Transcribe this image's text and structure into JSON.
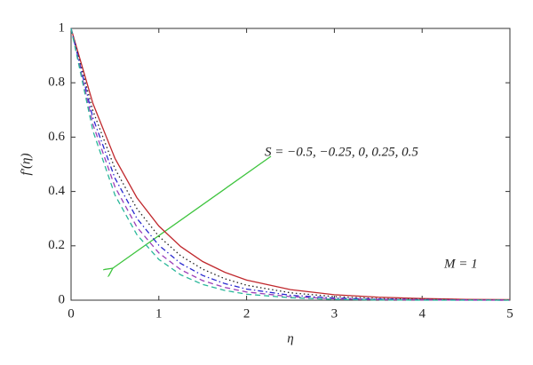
{
  "chart_data": {
    "type": "line",
    "x_label": "η",
    "y_label": "f′(η)",
    "annotations": [
      "S = −0.5, −0.25, 0, 0.25, 0.5",
      "M = 1"
    ],
    "x": [
      0,
      0.25,
      0.5,
      0.75,
      1,
      1.25,
      1.5,
      1.75,
      2,
      2.5,
      3,
      3.5,
      4,
      4.5,
      5
    ],
    "series": [
      {
        "color": "#c0282d",
        "dash": "solid",
        "values": [
          1,
          0.723,
          0.522,
          0.377,
          0.273,
          0.197,
          0.142,
          0.103,
          0.074,
          0.039,
          0.02,
          0.011,
          0.006,
          0.003,
          0.002
        ]
      },
      {
        "color": "#222222",
        "dash": "dotted",
        "values": [
          1,
          0.696,
          0.484,
          0.337,
          0.235,
          0.163,
          0.114,
          0.079,
          0.055,
          0.027,
          0.013,
          0.006,
          0.003,
          0.001,
          0.001
        ]
      },
      {
        "color": "#2a2ad0",
        "dash": "dashdot",
        "values": [
          1,
          0.67,
          0.449,
          0.301,
          0.202,
          0.135,
          0.091,
          0.061,
          0.041,
          0.018,
          0.008,
          0.004,
          0.002,
          0.001,
          0
        ]
      },
      {
        "color": "#9b3fb8",
        "dash": "dashed",
        "values": [
          1,
          0.646,
          0.417,
          0.269,
          0.174,
          0.112,
          0.072,
          0.047,
          0.03,
          0.013,
          0.005,
          0.002,
          0.001,
          0,
          0
        ]
      },
      {
        "color": "#2ab79a",
        "dash": "dashed",
        "values": [
          1,
          0.622,
          0.387,
          0.241,
          0.15,
          0.093,
          0.058,
          0.036,
          0.022,
          0.009,
          0.003,
          0.001,
          0,
          0,
          0
        ]
      }
    ],
    "xlim": [
      0,
      5
    ],
    "ylim": [
      0,
      1
    ],
    "xticks": [
      0,
      1,
      2,
      3,
      4,
      5
    ],
    "yticks": [
      0,
      0.2,
      0.4,
      0.6,
      0.8,
      1
    ]
  }
}
